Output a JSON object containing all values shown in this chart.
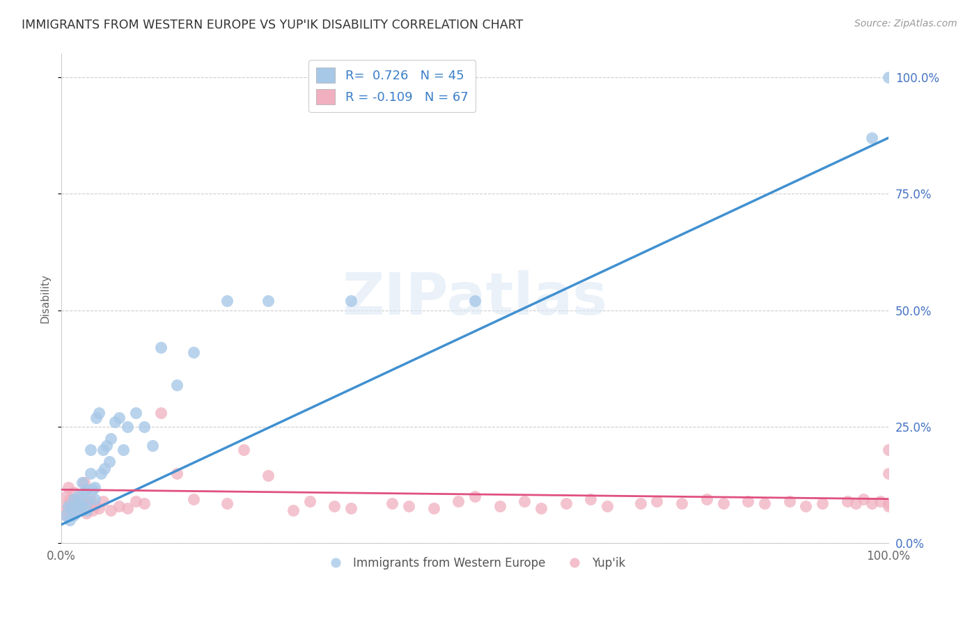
{
  "title": "IMMIGRANTS FROM WESTERN EUROPE VS YUP'IK DISABILITY CORRELATION CHART",
  "source": "Source: ZipAtlas.com",
  "ylabel": "Disability",
  "ytick_labels": [
    "0.0%",
    "25.0%",
    "50.0%",
    "75.0%",
    "100.0%"
  ],
  "ytick_values": [
    0.0,
    0.25,
    0.5,
    0.75,
    1.0
  ],
  "xtick_values": [
    0.0,
    0.25,
    0.5,
    0.75,
    1.0
  ],
  "xtick_labels": [
    "0.0%",
    "",
    "",
    "",
    "100.0%"
  ],
  "xlim": [
    0.0,
    1.0
  ],
  "ylim": [
    0.0,
    1.05
  ],
  "blue_R": 0.726,
  "blue_N": 45,
  "pink_R": -0.109,
  "pink_N": 67,
  "blue_color": "#a8c8e8",
  "pink_color": "#f0b0c0",
  "blue_line_color": "#4090d0",
  "pink_line_color": "#e05080",
  "watermark": "ZIPatlas",
  "legend_labels": [
    "Immigrants from Western Europe",
    "Yup'ik"
  ],
  "blue_scatter_x": [
    0.005,
    0.008,
    0.01,
    0.012,
    0.015,
    0.015,
    0.018,
    0.02,
    0.02,
    0.022,
    0.025,
    0.025,
    0.028,
    0.03,
    0.03,
    0.032,
    0.035,
    0.035,
    0.038,
    0.04,
    0.04,
    0.042,
    0.045,
    0.048,
    0.05,
    0.052,
    0.055,
    0.058,
    0.06,
    0.065,
    0.07,
    0.075,
    0.08,
    0.09,
    0.1,
    0.11,
    0.12,
    0.14,
    0.16,
    0.2,
    0.25,
    0.35,
    0.5,
    0.98,
    1.0
  ],
  "blue_scatter_y": [
    0.06,
    0.08,
    0.05,
    0.075,
    0.095,
    0.06,
    0.08,
    0.1,
    0.07,
    0.085,
    0.13,
    0.08,
    0.11,
    0.07,
    0.115,
    0.09,
    0.15,
    0.2,
    0.115,
    0.12,
    0.095,
    0.27,
    0.28,
    0.15,
    0.2,
    0.16,
    0.21,
    0.175,
    0.225,
    0.26,
    0.27,
    0.2,
    0.25,
    0.28,
    0.25,
    0.21,
    0.42,
    0.34,
    0.41,
    0.52,
    0.52,
    0.52,
    0.52,
    0.87,
    1.0
  ],
  "pink_scatter_x": [
    0.003,
    0.005,
    0.006,
    0.008,
    0.008,
    0.01,
    0.01,
    0.012,
    0.015,
    0.015,
    0.018,
    0.02,
    0.022,
    0.025,
    0.028,
    0.03,
    0.032,
    0.035,
    0.038,
    0.04,
    0.045,
    0.05,
    0.06,
    0.07,
    0.08,
    0.09,
    0.1,
    0.12,
    0.14,
    0.16,
    0.2,
    0.22,
    0.25,
    0.28,
    0.3,
    0.33,
    0.35,
    0.4,
    0.42,
    0.45,
    0.48,
    0.5,
    0.53,
    0.56,
    0.58,
    0.61,
    0.64,
    0.66,
    0.7,
    0.72,
    0.75,
    0.78,
    0.8,
    0.83,
    0.85,
    0.88,
    0.9,
    0.92,
    0.95,
    0.96,
    0.97,
    0.98,
    0.99,
    1.0,
    1.0,
    1.0,
    1.0
  ],
  "pink_scatter_y": [
    0.08,
    0.06,
    0.1,
    0.075,
    0.12,
    0.065,
    0.095,
    0.085,
    0.07,
    0.11,
    0.09,
    0.08,
    0.07,
    0.095,
    0.13,
    0.065,
    0.085,
    0.095,
    0.07,
    0.08,
    0.075,
    0.09,
    0.07,
    0.08,
    0.075,
    0.09,
    0.085,
    0.28,
    0.15,
    0.095,
    0.085,
    0.2,
    0.145,
    0.07,
    0.09,
    0.08,
    0.075,
    0.085,
    0.08,
    0.075,
    0.09,
    0.1,
    0.08,
    0.09,
    0.075,
    0.085,
    0.095,
    0.08,
    0.085,
    0.09,
    0.085,
    0.095,
    0.085,
    0.09,
    0.085,
    0.09,
    0.08,
    0.085,
    0.09,
    0.085,
    0.095,
    0.085,
    0.09,
    0.15,
    0.085,
    0.08,
    0.2
  ]
}
